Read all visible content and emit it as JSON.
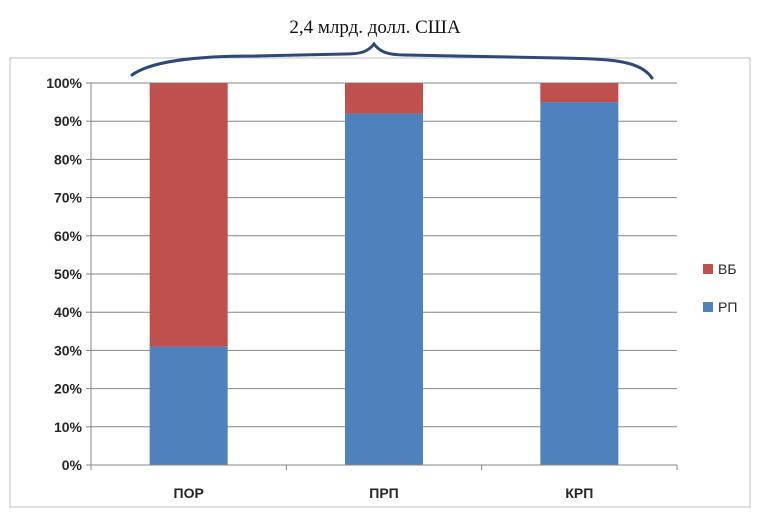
{
  "chart_data": {
    "type": "bar",
    "stacked": true,
    "percent": true,
    "annotation": "2,4 млрд. долл. США",
    "categories": [
      "ПОР",
      "ПРП",
      "КРП"
    ],
    "series": [
      {
        "name": "РП",
        "color": "#4F81BD",
        "values": [
          31,
          92,
          95
        ]
      },
      {
        "name": "ВБ",
        "color": "#C0504D",
        "values": [
          69,
          8,
          5
        ]
      }
    ],
    "legend_order": [
      "ВБ",
      "РП"
    ],
    "y_ticks": [
      "0%",
      "10%",
      "20%",
      "30%",
      "40%",
      "50%",
      "60%",
      "70%",
      "80%",
      "90%",
      "100%"
    ],
    "ylim": [
      0,
      100
    ],
    "grid": true,
    "legend_position": "right",
    "brace_color": "#2C4A78"
  }
}
